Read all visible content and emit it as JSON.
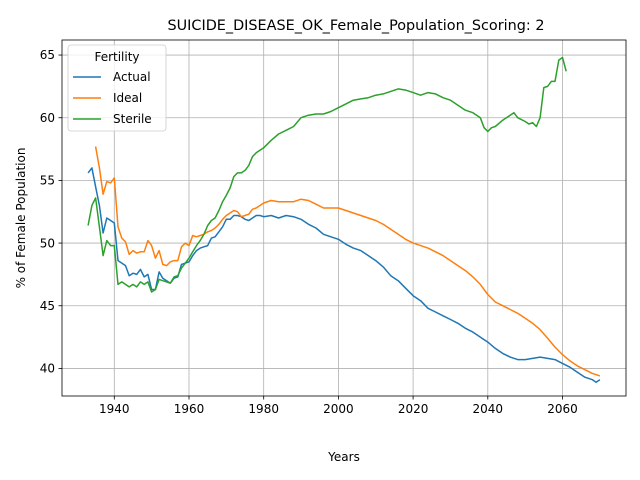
{
  "chart_data": {
    "type": "line",
    "title": "SUICIDE_DISEASE_OK_Female_Population_Scoring: 2",
    "xlabel": "Years",
    "ylabel": "% of Female Population",
    "xlim": [
      1926,
      2077
    ],
    "ylim": [
      37.8,
      66.2
    ],
    "xticks": [
      1940,
      1960,
      1980,
      2000,
      2020,
      2040,
      2060
    ],
    "yticks": [
      40,
      45,
      50,
      55,
      60,
      65
    ],
    "grid": true,
    "legend": {
      "title": "Fertility",
      "placement": "top-left"
    },
    "series": [
      {
        "name": "Actual",
        "color": "#1f77b4",
        "points": [
          [
            1933,
            55.6
          ],
          [
            1934,
            56.0
          ],
          [
            1935,
            54.5
          ],
          [
            1936,
            53.0
          ],
          [
            1937,
            50.8
          ],
          [
            1938,
            52.0
          ],
          [
            1939,
            51.8
          ],
          [
            1940,
            51.6
          ],
          [
            1941,
            48.6
          ],
          [
            1942,
            48.4
          ],
          [
            1943,
            48.2
          ],
          [
            1944,
            47.4
          ],
          [
            1945,
            47.6
          ],
          [
            1946,
            47.5
          ],
          [
            1947,
            47.9
          ],
          [
            1948,
            47.3
          ],
          [
            1949,
            47.5
          ],
          [
            1950,
            46.3
          ],
          [
            1951,
            46.3
          ],
          [
            1952,
            47.7
          ],
          [
            1953,
            47.2
          ],
          [
            1954,
            47.0
          ],
          [
            1955,
            46.8
          ],
          [
            1956,
            47.2
          ],
          [
            1957,
            47.3
          ],
          [
            1958,
            48.3
          ],
          [
            1959,
            48.4
          ],
          [
            1960,
            48.5
          ],
          [
            1961,
            49.0
          ],
          [
            1962,
            49.4
          ],
          [
            1963,
            49.6
          ],
          [
            1964,
            49.7
          ],
          [
            1965,
            49.8
          ],
          [
            1966,
            50.4
          ],
          [
            1967,
            50.5
          ],
          [
            1968,
            50.9
          ],
          [
            1969,
            51.3
          ],
          [
            1970,
            51.9
          ],
          [
            1971,
            51.9
          ],
          [
            1972,
            52.2
          ],
          [
            1973,
            52.2
          ],
          [
            1974,
            52.1
          ],
          [
            1975,
            51.9
          ],
          [
            1976,
            51.8
          ],
          [
            1977,
            52.0
          ],
          [
            1978,
            52.2
          ],
          [
            1979,
            52.2
          ],
          [
            1980,
            52.1
          ],
          [
            1982,
            52.2
          ],
          [
            1984,
            52.0
          ],
          [
            1986,
            52.2
          ],
          [
            1988,
            52.1
          ],
          [
            1990,
            51.9
          ],
          [
            1992,
            51.5
          ],
          [
            1994,
            51.2
          ],
          [
            1996,
            50.7
          ],
          [
            1998,
            50.5
          ],
          [
            2000,
            50.3
          ],
          [
            2002,
            49.9
          ],
          [
            2004,
            49.6
          ],
          [
            2006,
            49.4
          ],
          [
            2008,
            49.0
          ],
          [
            2010,
            48.6
          ],
          [
            2012,
            48.1
          ],
          [
            2014,
            47.4
          ],
          [
            2016,
            47.0
          ],
          [
            2018,
            46.4
          ],
          [
            2020,
            45.8
          ],
          [
            2022,
            45.4
          ],
          [
            2024,
            44.8
          ],
          [
            2026,
            44.5
          ],
          [
            2028,
            44.2
          ],
          [
            2030,
            43.9
          ],
          [
            2032,
            43.6
          ],
          [
            2034,
            43.2
          ],
          [
            2036,
            42.9
          ],
          [
            2038,
            42.5
          ],
          [
            2040,
            42.1
          ],
          [
            2042,
            41.6
          ],
          [
            2044,
            41.2
          ],
          [
            2046,
            40.9
          ],
          [
            2048,
            40.7
          ],
          [
            2050,
            40.7
          ],
          [
            2052,
            40.8
          ],
          [
            2054,
            40.9
          ],
          [
            2056,
            40.8
          ],
          [
            2058,
            40.7
          ],
          [
            2060,
            40.4
          ],
          [
            2062,
            40.1
          ],
          [
            2064,
            39.7
          ],
          [
            2066,
            39.3
          ],
          [
            2068,
            39.1
          ],
          [
            2069,
            38.9
          ],
          [
            2070,
            39.1
          ]
        ]
      },
      {
        "name": "Ideal",
        "color": "#ff7f0e",
        "points": [
          [
            1935,
            57.7
          ],
          [
            1936,
            56.0
          ],
          [
            1937,
            53.9
          ],
          [
            1938,
            54.9
          ],
          [
            1939,
            54.8
          ],
          [
            1940,
            55.2
          ],
          [
            1941,
            51.3
          ],
          [
            1942,
            50.4
          ],
          [
            1943,
            50.1
          ],
          [
            1944,
            49.1
          ],
          [
            1945,
            49.4
          ],
          [
            1946,
            49.2
          ],
          [
            1947,
            49.3
          ],
          [
            1948,
            49.3
          ],
          [
            1949,
            50.2
          ],
          [
            1950,
            49.8
          ],
          [
            1951,
            48.8
          ],
          [
            1952,
            49.4
          ],
          [
            1953,
            48.3
          ],
          [
            1954,
            48.2
          ],
          [
            1955,
            48.5
          ],
          [
            1956,
            48.6
          ],
          [
            1957,
            48.6
          ],
          [
            1958,
            49.7
          ],
          [
            1959,
            50.0
          ],
          [
            1960,
            49.8
          ],
          [
            1961,
            50.6
          ],
          [
            1962,
            50.5
          ],
          [
            1963,
            50.6
          ],
          [
            1964,
            50.7
          ],
          [
            1965,
            50.9
          ],
          [
            1966,
            51.0
          ],
          [
            1967,
            51.2
          ],
          [
            1968,
            51.5
          ],
          [
            1969,
            51.9
          ],
          [
            1970,
            52.2
          ],
          [
            1971,
            52.4
          ],
          [
            1972,
            52.6
          ],
          [
            1973,
            52.5
          ],
          [
            1974,
            52.1
          ],
          [
            1975,
            52.2
          ],
          [
            1976,
            52.3
          ],
          [
            1977,
            52.7
          ],
          [
            1978,
            52.8
          ],
          [
            1980,
            53.2
          ],
          [
            1982,
            53.4
          ],
          [
            1984,
            53.3
          ],
          [
            1986,
            53.3
          ],
          [
            1988,
            53.3
          ],
          [
            1990,
            53.5
          ],
          [
            1992,
            53.4
          ],
          [
            1994,
            53.1
          ],
          [
            1996,
            52.8
          ],
          [
            1998,
            52.8
          ],
          [
            2000,
            52.8
          ],
          [
            2002,
            52.6
          ],
          [
            2004,
            52.4
          ],
          [
            2006,
            52.2
          ],
          [
            2008,
            52.0
          ],
          [
            2010,
            51.8
          ],
          [
            2012,
            51.5
          ],
          [
            2014,
            51.1
          ],
          [
            2016,
            50.7
          ],
          [
            2018,
            50.3
          ],
          [
            2020,
            50.0
          ],
          [
            2022,
            49.8
          ],
          [
            2024,
            49.6
          ],
          [
            2026,
            49.3
          ],
          [
            2028,
            49.0
          ],
          [
            2030,
            48.6
          ],
          [
            2032,
            48.2
          ],
          [
            2034,
            47.8
          ],
          [
            2036,
            47.3
          ],
          [
            2038,
            46.7
          ],
          [
            2040,
            45.9
          ],
          [
            2042,
            45.3
          ],
          [
            2044,
            45.0
          ],
          [
            2046,
            44.7
          ],
          [
            2048,
            44.4
          ],
          [
            2050,
            44.0
          ],
          [
            2052,
            43.6
          ],
          [
            2054,
            43.1
          ],
          [
            2056,
            42.4
          ],
          [
            2058,
            41.7
          ],
          [
            2060,
            41.1
          ],
          [
            2062,
            40.6
          ],
          [
            2064,
            40.2
          ],
          [
            2066,
            39.9
          ],
          [
            2068,
            39.6
          ],
          [
            2070,
            39.4
          ]
        ]
      },
      {
        "name": "Sterile",
        "color": "#2ca02c",
        "points": [
          [
            1933,
            51.4
          ],
          [
            1934,
            53.0
          ],
          [
            1935,
            53.6
          ],
          [
            1936,
            51.3
          ],
          [
            1937,
            49.0
          ],
          [
            1938,
            50.2
          ],
          [
            1939,
            49.8
          ],
          [
            1940,
            49.8
          ],
          [
            1941,
            46.7
          ],
          [
            1942,
            46.9
          ],
          [
            1943,
            46.7
          ],
          [
            1944,
            46.5
          ],
          [
            1945,
            46.7
          ],
          [
            1946,
            46.5
          ],
          [
            1947,
            46.9
          ],
          [
            1948,
            46.7
          ],
          [
            1949,
            46.9
          ],
          [
            1950,
            46.1
          ],
          [
            1951,
            46.3
          ],
          [
            1952,
            47.1
          ],
          [
            1953,
            47.0
          ],
          [
            1954,
            46.9
          ],
          [
            1955,
            46.8
          ],
          [
            1956,
            47.3
          ],
          [
            1957,
            47.4
          ],
          [
            1958,
            48.0
          ],
          [
            1959,
            48.4
          ],
          [
            1960,
            48.8
          ],
          [
            1961,
            49.3
          ],
          [
            1962,
            49.8
          ],
          [
            1963,
            50.2
          ],
          [
            1964,
            50.7
          ],
          [
            1965,
            51.4
          ],
          [
            1966,
            51.8
          ],
          [
            1967,
            52.0
          ],
          [
            1968,
            52.6
          ],
          [
            1969,
            53.3
          ],
          [
            1970,
            53.8
          ],
          [
            1971,
            54.4
          ],
          [
            1972,
            55.3
          ],
          [
            1973,
            55.6
          ],
          [
            1974,
            55.6
          ],
          [
            1975,
            55.8
          ],
          [
            1976,
            56.2
          ],
          [
            1977,
            56.9
          ],
          [
            1978,
            57.2
          ],
          [
            1980,
            57.6
          ],
          [
            1982,
            58.2
          ],
          [
            1984,
            58.7
          ],
          [
            1986,
            59.0
          ],
          [
            1988,
            59.3
          ],
          [
            1990,
            60.0
          ],
          [
            1992,
            60.2
          ],
          [
            1994,
            60.3
          ],
          [
            1996,
            60.3
          ],
          [
            1998,
            60.5
          ],
          [
            2000,
            60.8
          ],
          [
            2002,
            61.1
          ],
          [
            2004,
            61.4
          ],
          [
            2006,
            61.5
          ],
          [
            2008,
            61.6
          ],
          [
            2010,
            61.8
          ],
          [
            2012,
            61.9
          ],
          [
            2014,
            62.1
          ],
          [
            2016,
            62.3
          ],
          [
            2018,
            62.2
          ],
          [
            2020,
            62.0
          ],
          [
            2022,
            61.8
          ],
          [
            2024,
            62.0
          ],
          [
            2026,
            61.9
          ],
          [
            2028,
            61.6
          ],
          [
            2030,
            61.4
          ],
          [
            2032,
            61.0
          ],
          [
            2034,
            60.6
          ],
          [
            2036,
            60.4
          ],
          [
            2038,
            60.0
          ],
          [
            2039,
            59.2
          ],
          [
            2040,
            58.9
          ],
          [
            2041,
            59.2
          ],
          [
            2042,
            59.3
          ],
          [
            2044,
            59.8
          ],
          [
            2046,
            60.2
          ],
          [
            2047,
            60.4
          ],
          [
            2048,
            60.0
          ],
          [
            2050,
            59.7
          ],
          [
            2051,
            59.5
          ],
          [
            2052,
            59.6
          ],
          [
            2053,
            59.3
          ],
          [
            2054,
            60.0
          ],
          [
            2055,
            62.4
          ],
          [
            2056,
            62.5
          ],
          [
            2057,
            62.9
          ],
          [
            2058,
            62.9
          ],
          [
            2059,
            64.6
          ],
          [
            2060,
            64.8
          ],
          [
            2061,
            63.7
          ]
        ]
      }
    ]
  }
}
